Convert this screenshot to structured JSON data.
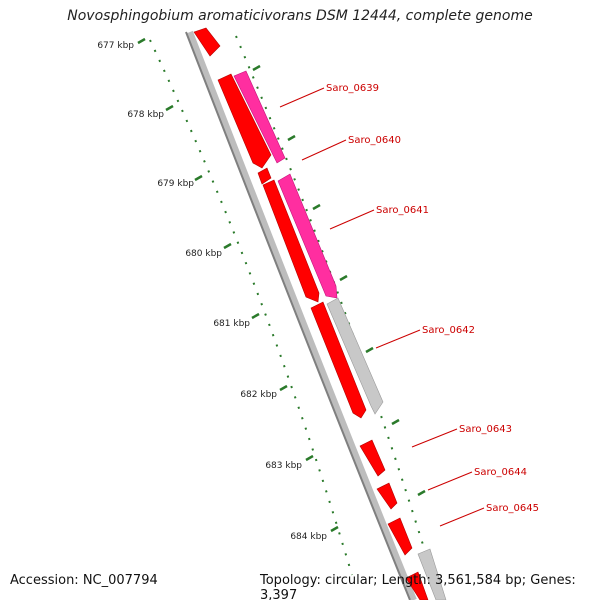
{
  "title": "Novosphingobium aromaticivorans DSM 12444, complete genome",
  "footer": {
    "accession": "Accession: NC_007794",
    "summary": "Topology: circular; Length: 3,561,584 bp; Genes: 3,397"
  },
  "colors": {
    "backbone": "#7f7f7f",
    "tick": "#2a7a2a",
    "gene_forward": "#ff0000",
    "gene_reverse_pink": "#ff2ea0",
    "gene_reverse_gray": "#c8c8c8",
    "label": "#cc0000",
    "kbp_label": "#222222"
  },
  "kbp_labels": [
    "677 kbp",
    "678 kbp",
    "679 kbp",
    "680 kbp",
    "681 kbp",
    "682 kbp",
    "683 kbp",
    "684 kbp"
  ],
  "genes": [
    {
      "name": "Saro_0639",
      "strand": "reverse",
      "color": "pink"
    },
    {
      "name": "Saro_0640",
      "strand": "reverse",
      "color": "pink"
    },
    {
      "name": "Saro_0641",
      "strand": "reverse",
      "color": "pink"
    },
    {
      "name": "Saro_0642",
      "strand": "reverse",
      "color": "gray"
    },
    {
      "name": "Saro_0643",
      "strand": "forward",
      "color": "red"
    },
    {
      "name": "Saro_0644",
      "strand": "forward",
      "color": "red"
    },
    {
      "name": "Saro_0645",
      "strand": "forward",
      "color": "red"
    }
  ]
}
